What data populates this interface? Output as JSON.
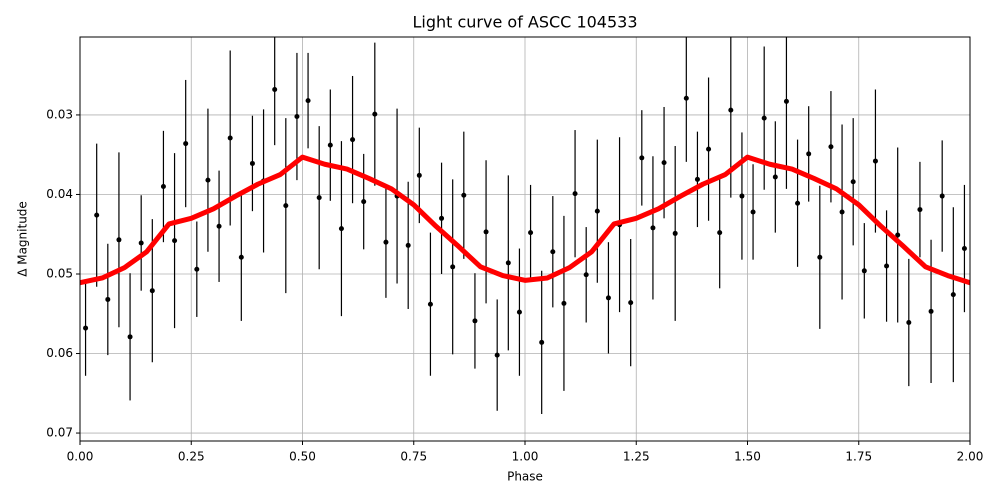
{
  "chart_data": {
    "type": "scatter",
    "title": "Light curve of ASCC 104533",
    "x_label": "Phase",
    "y_label": "Δ Magnitude",
    "xlim": [
      0,
      2
    ],
    "ylim": [
      0.0202,
      0.071
    ],
    "y_inverted": true,
    "grid": true,
    "xticks": [
      {
        "value": 0,
        "label": "0.00"
      },
      0.25,
      {
        "value": 0.5,
        "label": "0.50"
      },
      0.75,
      {
        "value": 1,
        "label": "1.00"
      },
      1.25,
      {
        "value": 1.5,
        "label": "1.50"
      },
      1.75,
      {
        "value": 2,
        "label": "2.00"
      }
    ],
    "yticks": [
      0.03,
      0.04,
      0.05,
      0.06,
      0.07
    ],
    "series": [
      {
        "style": "errorbar",
        "color": "#000000",
        "x": [
          0.0125,
          0.0375,
          0.0625,
          0.0875,
          0.1125,
          0.1375,
          0.1625,
          0.1875,
          0.2125,
          0.2375,
          0.2625,
          0.2875,
          0.3125,
          0.3375,
          0.3625,
          0.3875,
          0.4125,
          0.4375,
          0.4625,
          0.4875,
          0.5125,
          0.5375,
          0.5625,
          0.5875,
          0.6125,
          0.6375,
          0.6625,
          0.6875,
          0.7125,
          0.7375,
          0.7625,
          0.7875,
          0.8125,
          0.8375,
          0.8625,
          0.8875,
          0.9125,
          0.9375,
          0.9625,
          0.9875,
          1.0125,
          1.0375,
          1.0625,
          1.0875,
          1.1125,
          1.1375,
          1.1625,
          1.1875,
          1.2125,
          1.2375,
          1.2625,
          1.2875,
          1.3125,
          1.3375,
          1.3625,
          1.3875,
          1.4125,
          1.4375,
          1.4625,
          1.4875,
          1.5125,
          1.5375,
          1.5625,
          1.5875,
          1.6125,
          1.6375,
          1.6625,
          1.6875,
          1.7125,
          1.7375,
          1.7625,
          1.7875,
          1.8125,
          1.8375,
          1.8625,
          1.8875,
          1.9125,
          1.9375,
          1.9625,
          1.9875
        ],
        "values": [
          0.0568,
          0.0426,
          0.0532,
          0.0457,
          0.0579,
          0.0461,
          0.0521,
          0.039,
          0.0458,
          0.0336,
          0.0494,
          0.0382,
          0.044,
          0.0329,
          0.0479,
          0.0361,
          0.0383,
          0.0268,
          0.0414,
          0.0302,
          0.0282,
          0.0404,
          0.0338,
          0.0443,
          0.0331,
          0.0409,
          0.0299,
          0.046,
          0.0402,
          0.0464,
          0.0376,
          0.0538,
          0.043,
          0.0491,
          0.0401,
          0.0559,
          0.0447,
          0.0602,
          0.0486,
          0.0548,
          0.0448,
          0.0586,
          0.0472,
          0.0537,
          0.0399,
          0.0501,
          0.0421,
          0.053,
          0.0438,
          0.0536,
          0.0354,
          0.0442,
          0.036,
          0.0449,
          0.0279,
          0.0381,
          0.0343,
          0.0448,
          0.0294,
          0.0402,
          0.0422,
          0.0304,
          0.0378,
          0.0283,
          0.0411,
          0.0349,
          0.0479,
          0.034,
          0.0422,
          0.0384,
          0.0496,
          0.0358,
          0.049,
          0.0451,
          0.0561,
          0.0419,
          0.0547,
          0.0402,
          0.0526,
          0.0468
        ],
        "errors": [
          0.006,
          0.009,
          0.007,
          0.011,
          0.008,
          0.006,
          0.009,
          0.007,
          0.011,
          0.008,
          0.006,
          0.009,
          0.007,
          0.011,
          0.008,
          0.006,
          0.009,
          0.007,
          0.011,
          0.008,
          0.006,
          0.009,
          0.007,
          0.011,
          0.008,
          0.006,
          0.009,
          0.007,
          0.011,
          0.008,
          0.006,
          0.009,
          0.007,
          0.011,
          0.008,
          0.006,
          0.009,
          0.007,
          0.011,
          0.008,
          0.006,
          0.009,
          0.007,
          0.011,
          0.008,
          0.006,
          0.009,
          0.007,
          0.011,
          0.008,
          0.006,
          0.009,
          0.007,
          0.011,
          0.008,
          0.006,
          0.009,
          0.007,
          0.011,
          0.008,
          0.006,
          0.009,
          0.007,
          0.011,
          0.008,
          0.006,
          0.009,
          0.007,
          0.011,
          0.008,
          0.006,
          0.009,
          0.007,
          0.011,
          0.008,
          0.006,
          0.009,
          0.007,
          0.011,
          0.008
        ]
      },
      {
        "style": "line",
        "color": "#ff0000",
        "x": [
          0,
          0.05,
          0.1,
          0.15,
          0.2,
          0.25,
          0.3,
          0.35,
          0.4,
          0.45,
          0.5,
          0.55,
          0.6,
          0.65,
          0.7,
          0.75,
          0.8,
          0.85,
          0.9,
          0.95,
          1,
          1.05,
          1.1,
          1.15,
          1.2,
          1.25,
          1.3,
          1.35,
          1.4,
          1.45,
          1.5,
          1.55,
          1.6,
          1.65,
          1.7,
          1.75,
          1.8,
          1.85,
          1.9,
          1.95,
          2
        ],
        "values": [
          0.0511,
          0.0505,
          0.0492,
          0.0472,
          0.0437,
          0.043,
          0.0418,
          0.0402,
          0.0387,
          0.0375,
          0.0353,
          0.0362,
          0.0368,
          0.038,
          0.0393,
          0.0413,
          0.044,
          0.0465,
          0.0491,
          0.0502,
          0.0508,
          0.0505,
          0.0492,
          0.0472,
          0.0437,
          0.043,
          0.0418,
          0.0402,
          0.0387,
          0.0375,
          0.0353,
          0.0362,
          0.0368,
          0.038,
          0.0393,
          0.0413,
          0.044,
          0.0465,
          0.0491,
          0.0502,
          0.0511
        ]
      }
    ]
  }
}
